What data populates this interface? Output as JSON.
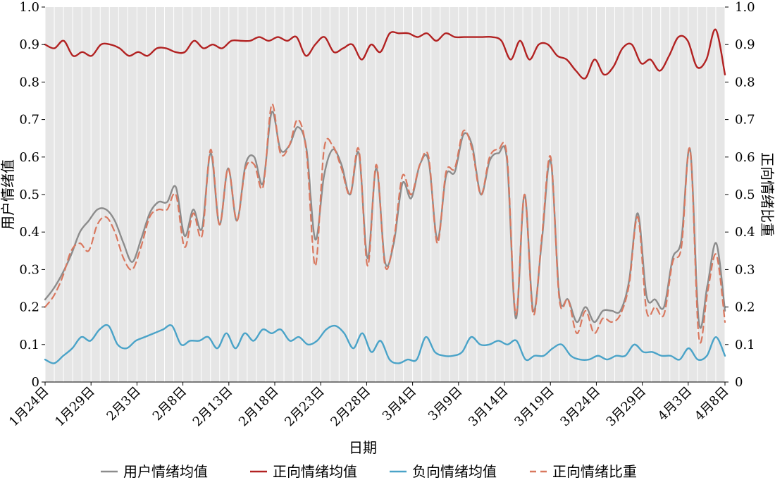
{
  "chart_data": {
    "type": "line",
    "title": "",
    "xlabel": "日期",
    "ylabel": "用户情绪值",
    "y2label": "正向情绪比重",
    "ylim": [
      0,
      1.0
    ],
    "y2lim": [
      0,
      1.0
    ],
    "yticks": [
      "0",
      "0.1",
      "0.2",
      "0.3",
      "0.4",
      "0.5",
      "0.6",
      "0.7",
      "0.8",
      "0.9",
      "1.0"
    ],
    "x_start": "1月24日",
    "x_tick_labels": [
      "1月24日",
      "1月29日",
      "2月3日",
      "2月8日",
      "2月13日",
      "2月18日",
      "2月23日",
      "2月28日",
      "3月4日",
      "3月9日",
      "3月14日",
      "3月19日",
      "3月24日",
      "3月29日",
      "4月3日",
      "4月8日"
    ],
    "grid": true,
    "background": "#e6e6e6",
    "legend_position": "bottom",
    "series": [
      {
        "name": "用户情绪均值",
        "axis": "left",
        "color": "#8c8c8c",
        "dash": false,
        "values": [
          0.22,
          0.25,
          0.29,
          0.34,
          0.4,
          0.43,
          0.46,
          0.46,
          0.43,
          0.37,
          0.32,
          0.38,
          0.45,
          0.48,
          0.48,
          0.52,
          0.39,
          0.46,
          0.41,
          0.61,
          0.42,
          0.57,
          0.43,
          0.58,
          0.6,
          0.53,
          0.72,
          0.62,
          0.63,
          0.68,
          0.62,
          0.38,
          0.55,
          0.62,
          0.58,
          0.5,
          0.61,
          0.33,
          0.57,
          0.32,
          0.37,
          0.53,
          0.49,
          0.58,
          0.59,
          0.38,
          0.55,
          0.56,
          0.66,
          0.63,
          0.5,
          0.59,
          0.61,
          0.59,
          0.17,
          0.5,
          0.19,
          0.38,
          0.59,
          0.23,
          0.22,
          0.16,
          0.2,
          0.16,
          0.19,
          0.19,
          0.19,
          0.27,
          0.45,
          0.23,
          0.22,
          0.2,
          0.33,
          0.38,
          0.62,
          0.16,
          0.26,
          0.37,
          0.19
        ]
      },
      {
        "name": "正向情绪均值",
        "axis": "left",
        "color": "#b22222",
        "dash": false,
        "values": [
          0.9,
          0.89,
          0.91,
          0.87,
          0.88,
          0.87,
          0.9,
          0.9,
          0.89,
          0.87,
          0.88,
          0.87,
          0.89,
          0.89,
          0.88,
          0.88,
          0.91,
          0.89,
          0.9,
          0.89,
          0.91,
          0.91,
          0.91,
          0.92,
          0.91,
          0.92,
          0.91,
          0.92,
          0.87,
          0.9,
          0.92,
          0.88,
          0.89,
          0.9,
          0.86,
          0.9,
          0.88,
          0.93,
          0.93,
          0.93,
          0.92,
          0.93,
          0.91,
          0.93,
          0.92,
          0.92,
          0.92,
          0.92,
          0.92,
          0.91,
          0.86,
          0.91,
          0.86,
          0.9,
          0.9,
          0.87,
          0.86,
          0.83,
          0.81,
          0.86,
          0.82,
          0.84,
          0.89,
          0.9,
          0.85,
          0.86,
          0.83,
          0.87,
          0.92,
          0.91,
          0.84,
          0.86,
          0.94,
          0.82
        ]
      },
      {
        "name": "负向情绪均值",
        "axis": "left",
        "color": "#4aa3c8",
        "dash": false,
        "values": [
          0.06,
          0.05,
          0.07,
          0.09,
          0.12,
          0.11,
          0.14,
          0.15,
          0.1,
          0.09,
          0.11,
          0.12,
          0.13,
          0.14,
          0.15,
          0.1,
          0.11,
          0.11,
          0.12,
          0.09,
          0.13,
          0.09,
          0.13,
          0.11,
          0.14,
          0.13,
          0.14,
          0.11,
          0.12,
          0.1,
          0.11,
          0.14,
          0.15,
          0.13,
          0.09,
          0.13,
          0.08,
          0.11,
          0.06,
          0.05,
          0.06,
          0.06,
          0.12,
          0.08,
          0.07,
          0.07,
          0.08,
          0.12,
          0.1,
          0.1,
          0.11,
          0.1,
          0.11,
          0.06,
          0.07,
          0.07,
          0.09,
          0.1,
          0.07,
          0.06,
          0.06,
          0.07,
          0.06,
          0.07,
          0.07,
          0.1,
          0.08,
          0.08,
          0.07,
          0.07,
          0.06,
          0.09,
          0.06,
          0.07,
          0.12,
          0.07
        ]
      },
      {
        "name": "正向情绪比重",
        "axis": "right",
        "color": "#d9785f",
        "dash": true,
        "values": [
          0.2,
          0.23,
          0.28,
          0.35,
          0.37,
          0.35,
          0.42,
          0.44,
          0.4,
          0.33,
          0.3,
          0.36,
          0.44,
          0.46,
          0.46,
          0.5,
          0.36,
          0.45,
          0.39,
          0.62,
          0.42,
          0.57,
          0.43,
          0.57,
          0.58,
          0.52,
          0.74,
          0.61,
          0.63,
          0.7,
          0.61,
          0.31,
          0.62,
          0.63,
          0.57,
          0.5,
          0.62,
          0.31,
          0.58,
          0.31,
          0.38,
          0.55,
          0.5,
          0.58,
          0.6,
          0.37,
          0.56,
          0.57,
          0.67,
          0.62,
          0.5,
          0.6,
          0.62,
          0.6,
          0.18,
          0.5,
          0.18,
          0.39,
          0.6,
          0.22,
          0.22,
          0.13,
          0.19,
          0.13,
          0.17,
          0.16,
          0.18,
          0.26,
          0.44,
          0.19,
          0.2,
          0.18,
          0.32,
          0.36,
          0.62,
          0.12,
          0.24,
          0.34,
          0.16
        ]
      }
    ]
  }
}
